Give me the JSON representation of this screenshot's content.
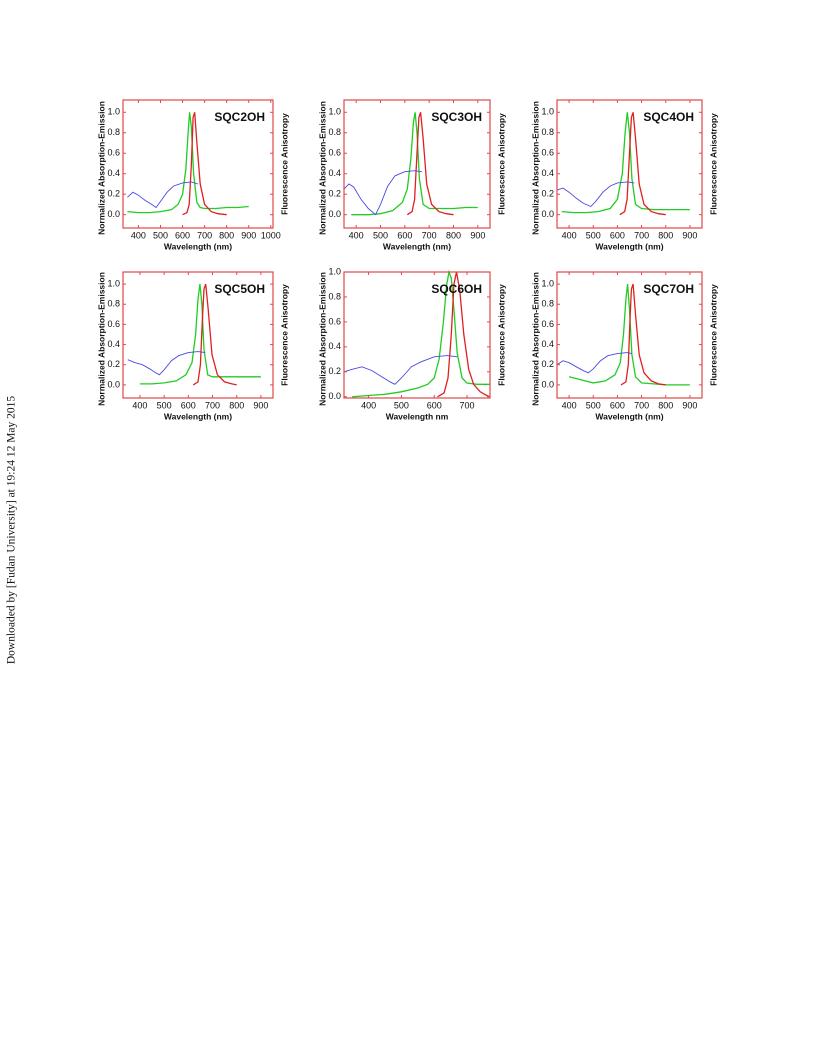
{
  "side_note": "Downloaded by [Fudan University] at 19:24 12 May 2015",
  "chart_data": [
    {
      "type": "line",
      "title": "SQC2OH",
      "xlabel": "Wavelength (nm)",
      "ylabel": "Normalized Absorption-Emission",
      "y2label": "Fluorescence Anisotropy",
      "xlim": [
        330,
        1010
      ],
      "xticks": [
        400,
        500,
        600,
        700,
        800,
        900,
        1000
      ],
      "ylim": [
        -0.13,
        1.12
      ],
      "yticks": [
        {
          "value": 0,
          "label": "0.0"
        },
        0.2,
        0.4,
        0.6,
        0.8,
        {
          "value": 1,
          "label": "1.0"
        }
      ],
      "series": [
        {
          "color": "#22cc22",
          "x": [
            350,
            400,
            450,
            500,
            550,
            580,
            600,
            615,
            625,
            632,
            640,
            650,
            665,
            680,
            700,
            750,
            800,
            850,
            900
          ],
          "values": [
            0.03,
            0.02,
            0.02,
            0.03,
            0.05,
            0.1,
            0.2,
            0.45,
            0.8,
            1.0,
            0.85,
            0.4,
            0.12,
            0.07,
            0.06,
            0.06,
            0.07,
            0.07,
            0.08
          ]
        },
        {
          "color": "#e02020",
          "x": [
            600,
            620,
            630,
            640,
            648,
            655,
            665,
            680,
            700,
            730,
            760,
            800
          ],
          "values": [
            0,
            0.02,
            0.1,
            0.5,
            0.95,
            1.0,
            0.7,
            0.3,
            0.1,
            0.03,
            0.01,
            0
          ]
        },
        {
          "color": "#4a4ae0",
          "x": [
            350,
            375,
            400,
            430,
            460,
            480,
            500,
            530,
            560,
            600,
            640,
            670
          ],
          "values": [
            0.17,
            0.22,
            0.19,
            0.14,
            0.1,
            0.07,
            0.13,
            0.22,
            0.28,
            0.31,
            0.32,
            0.3
          ]
        }
      ]
    },
    {
      "type": "line",
      "title": "SQC3OH",
      "xlabel": "Wavelength (nm)",
      "ylabel": "Normalized Absorption-Emission",
      "y2label": "Fluorescence Anisotropy",
      "xlim": [
        350,
        950
      ],
      "xticks": [
        400,
        500,
        600,
        700,
        800,
        900
      ],
      "ylim": [
        -0.13,
        1.12
      ],
      "yticks": [
        {
          "value": 0,
          "label": "0.0"
        },
        0.2,
        0.4,
        0.6,
        0.8,
        {
          "value": 1,
          "label": "1.0"
        }
      ],
      "series": [
        {
          "color": "#22cc22",
          "x": [
            380,
            450,
            500,
            550,
            590,
            610,
            625,
            635,
            642,
            650,
            660,
            675,
            700,
            750,
            800,
            850,
            900
          ],
          "values": [
            0,
            0,
            0.01,
            0.04,
            0.12,
            0.25,
            0.55,
            0.9,
            1.0,
            0.8,
            0.35,
            0.1,
            0.06,
            0.06,
            0.06,
            0.07,
            0.07
          ]
        },
        {
          "color": "#e02020",
          "x": [
            610,
            630,
            640,
            650,
            658,
            665,
            675,
            690,
            710,
            740,
            770,
            800
          ],
          "values": [
            0,
            0.03,
            0.15,
            0.6,
            0.95,
            1.0,
            0.75,
            0.3,
            0.1,
            0.03,
            0.01,
            0
          ]
        },
        {
          "color": "#4a4ae0",
          "x": [
            350,
            370,
            390,
            420,
            450,
            480,
            500,
            530,
            560,
            600,
            640,
            670
          ],
          "values": [
            0.25,
            0.3,
            0.27,
            0.15,
            0.06,
            0.0,
            0.1,
            0.28,
            0.38,
            0.42,
            0.43,
            0.42
          ]
        }
      ]
    },
    {
      "type": "line",
      "title": "SQC4OH",
      "xlabel": "Wavelength (nm)",
      "ylabel": "Normalized Absorption-Emission",
      "y2label": "Fluorescence Anisotropy",
      "xlim": [
        350,
        950
      ],
      "xticks": [
        400,
        500,
        600,
        700,
        800,
        900
      ],
      "ylim": [
        -0.13,
        1.12
      ],
      "yticks": [
        {
          "value": 0,
          "label": "0.0"
        },
        0.2,
        0.4,
        0.6,
        0.8,
        {
          "value": 1,
          "label": "1.0"
        }
      ],
      "series": [
        {
          "color": "#22cc22",
          "x": [
            370,
            420,
            470,
            520,
            570,
            600,
            620,
            632,
            641,
            650,
            660,
            675,
            700,
            750,
            800,
            850,
            900
          ],
          "values": [
            0.03,
            0.02,
            0.02,
            0.03,
            0.06,
            0.15,
            0.4,
            0.8,
            1.0,
            0.8,
            0.35,
            0.1,
            0.06,
            0.05,
            0.05,
            0.05,
            0.05
          ]
        },
        {
          "color": "#e02020",
          "x": [
            610,
            630,
            640,
            650,
            658,
            665,
            675,
            690,
            710,
            740,
            770,
            800
          ],
          "values": [
            0,
            0.03,
            0.15,
            0.6,
            0.95,
            1.0,
            0.75,
            0.3,
            0.1,
            0.03,
            0.01,
            0
          ]
        },
        {
          "color": "#4a4ae0",
          "x": [
            350,
            375,
            400,
            430,
            460,
            490,
            510,
            540,
            570,
            600,
            640,
            670
          ],
          "values": [
            0.24,
            0.26,
            0.22,
            0.16,
            0.11,
            0.08,
            0.13,
            0.22,
            0.28,
            0.31,
            0.32,
            0.31
          ]
        }
      ]
    },
    {
      "type": "line",
      "title": "SQC5OH",
      "xlabel": "Wavelength (nm)",
      "ylabel": "Normalized Absorption-Emission",
      "y2label": "Fluorescence Anisotropy",
      "xlim": [
        330,
        950
      ],
      "xticks": [
        400,
        500,
        600,
        700,
        800,
        900
      ],
      "ylim": [
        -0.13,
        1.12
      ],
      "yticks": [
        {
          "value": 0,
          "label": "0.0"
        },
        0.2,
        0.4,
        0.6,
        0.8,
        {
          "value": 1,
          "label": "1.0"
        }
      ],
      "series": [
        {
          "color": "#22cc22",
          "x": [
            400,
            450,
            500,
            550,
            590,
            615,
            630,
            640,
            648,
            656,
            665,
            680,
            700,
            750,
            800,
            850,
            900
          ],
          "values": [
            0.01,
            0.01,
            0.02,
            0.04,
            0.1,
            0.22,
            0.5,
            0.85,
            1.0,
            0.8,
            0.35,
            0.1,
            0.08,
            0.08,
            0.08,
            0.08,
            0.08
          ]
        },
        {
          "color": "#e02020",
          "x": [
            620,
            640,
            650,
            658,
            665,
            672,
            682,
            698,
            720,
            750,
            780,
            800
          ],
          "values": [
            0,
            0.03,
            0.2,
            0.65,
            0.95,
            1.0,
            0.75,
            0.3,
            0.1,
            0.03,
            0.01,
            0
          ]
        },
        {
          "color": "#4a4ae0",
          "x": [
            350,
            380,
            410,
            440,
            465,
            480,
            500,
            530,
            560,
            600,
            640,
            670
          ],
          "values": [
            0.25,
            0.22,
            0.2,
            0.16,
            0.12,
            0.1,
            0.15,
            0.24,
            0.29,
            0.32,
            0.33,
            0.32
          ]
        }
      ]
    },
    {
      "type": "line",
      "title": "SQC6OH",
      "xlabel": "Wavelength nm",
      "ylabel": "Normalized Absorption-Emission",
      "y2label": "Fluorescence Anisotropy",
      "xlim": [
        325,
        770
      ],
      "xticks": [
        400,
        500,
        600,
        700
      ],
      "ylim": [
        -0.01,
        1.0
      ],
      "yticks": [
        {
          "value": 0,
          "label": "0.0"
        },
        0.2,
        0.4,
        0.6,
        0.8,
        {
          "value": 1,
          "label": "1.0"
        }
      ],
      "series": [
        {
          "color": "#22cc22",
          "x": [
            350,
            400,
            450,
            500,
            550,
            580,
            600,
            615,
            628,
            638,
            645,
            652,
            660,
            670,
            685,
            700,
            730,
            770
          ],
          "values": [
            0.0,
            0.01,
            0.02,
            0.04,
            0.07,
            0.1,
            0.15,
            0.3,
            0.6,
            0.9,
            1.0,
            0.95,
            0.7,
            0.35,
            0.15,
            0.11,
            0.1,
            0.1
          ]
        },
        {
          "color": "#e02020",
          "x": [
            610,
            630,
            642,
            652,
            660,
            668,
            678,
            690,
            705,
            720,
            740,
            760,
            770
          ],
          "values": [
            0,
            0.03,
            0.15,
            0.5,
            0.9,
            1.0,
            0.85,
            0.5,
            0.22,
            0.1,
            0.04,
            0.01,
            0
          ]
        },
        {
          "color": "#4a4ae0",
          "x": [
            325,
            350,
            380,
            410,
            440,
            465,
            480,
            500,
            530,
            560,
            600,
            640,
            670
          ],
          "values": [
            0.2,
            0.22,
            0.24,
            0.21,
            0.16,
            0.12,
            0.1,
            0.15,
            0.24,
            0.28,
            0.32,
            0.33,
            0.32
          ]
        }
      ]
    },
    {
      "type": "line",
      "title": "SQC7OH",
      "xlabel": "Wavelength (nm)",
      "ylabel": "Normalized Absorption-Emission",
      "y2label": "Fluorescence Anisotropy",
      "xlim": [
        350,
        950
      ],
      "xticks": [
        400,
        500,
        600,
        700,
        800,
        900
      ],
      "ylim": [
        -0.13,
        1.12
      ],
      "yticks": [
        {
          "value": 0,
          "label": "0.0"
        },
        0.2,
        0.4,
        0.6,
        0.8,
        {
          "value": 1,
          "label": "1.0"
        }
      ],
      "series": [
        {
          "color": "#22cc22",
          "x": [
            400,
            450,
            500,
            550,
            590,
            612,
            625,
            635,
            642,
            650,
            660,
            675,
            700,
            750,
            800,
            850,
            900
          ],
          "values": [
            0.08,
            0.05,
            0.02,
            0.04,
            0.1,
            0.22,
            0.5,
            0.85,
            1.0,
            0.75,
            0.3,
            0.08,
            0.02,
            0.01,
            0.0,
            0.0,
            0.0
          ]
        },
        {
          "color": "#e02020",
          "x": [
            615,
            635,
            645,
            652,
            658,
            665,
            675,
            690,
            710,
            740,
            770,
            800
          ],
          "values": [
            0,
            0.03,
            0.2,
            0.65,
            0.95,
            1.0,
            0.7,
            0.3,
            0.12,
            0.04,
            0.01,
            0
          ]
        },
        {
          "color": "#4a4ae0",
          "x": [
            350,
            375,
            400,
            430,
            460,
            480,
            500,
            530,
            560,
            600,
            640,
            660
          ],
          "values": [
            0.2,
            0.24,
            0.22,
            0.18,
            0.14,
            0.12,
            0.16,
            0.24,
            0.29,
            0.31,
            0.32,
            0.31
          ]
        }
      ]
    }
  ]
}
